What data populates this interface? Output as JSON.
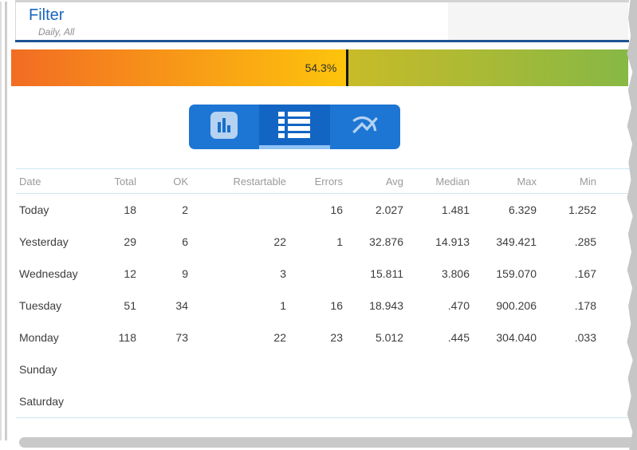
{
  "panel": {
    "title": "Filter",
    "subtitle": "Daily, All"
  },
  "gauge": {
    "value_percent": 54.3,
    "value_label": "54.3%",
    "gradient_start_color": "#f26c23",
    "gradient_mid_color": "#fdc40c",
    "gradient_after_marker_color": "#c8bb28",
    "gradient_end_color": "#87b845",
    "marker_color": "#151515"
  },
  "toolbar": {
    "accent_color": "#1d76d3",
    "selected_bg_color": "#1365c4",
    "selected_underline_color": "#8fc2f5",
    "buttons": [
      {
        "id": "bar-chart-view",
        "icon": "bar-chart-icon",
        "selected": false
      },
      {
        "id": "table-view",
        "icon": "table-icon",
        "selected": true
      },
      {
        "id": "line-chart-view",
        "icon": "multiline-chart-icon",
        "selected": false
      }
    ]
  },
  "table": {
    "columns": [
      "Date",
      "Total",
      "OK",
      "Restartable",
      "Errors",
      "Avg",
      "Median",
      "Max",
      "Min"
    ],
    "rows": [
      {
        "cells": [
          "Today",
          "18",
          "2",
          "",
          "16",
          "2.027",
          "1.481",
          "6.329",
          "1.252"
        ]
      },
      {
        "cells": [
          "Yesterday",
          "29",
          "6",
          "22",
          "1",
          "32.876",
          "14.913",
          "349.421",
          ".285"
        ]
      },
      {
        "cells": [
          "Wednesday",
          "12",
          "9",
          "3",
          "",
          "15.811",
          "3.806",
          "159.070",
          ".167"
        ]
      },
      {
        "cells": [
          "Tuesday",
          "51",
          "34",
          "1",
          "16",
          "18.943",
          ".470",
          "900.206",
          ".178"
        ]
      },
      {
        "cells": [
          "Monday",
          "118",
          "73",
          "22",
          "23",
          "5.012",
          ".445",
          "304.040",
          ".033"
        ]
      },
      {
        "cells": [
          "Sunday",
          "",
          "",
          "",
          "",
          "",
          "",
          "",
          ""
        ]
      },
      {
        "cells": [
          "Saturday",
          "",
          "",
          "",
          "",
          "",
          "",
          "",
          ""
        ]
      }
    ]
  }
}
